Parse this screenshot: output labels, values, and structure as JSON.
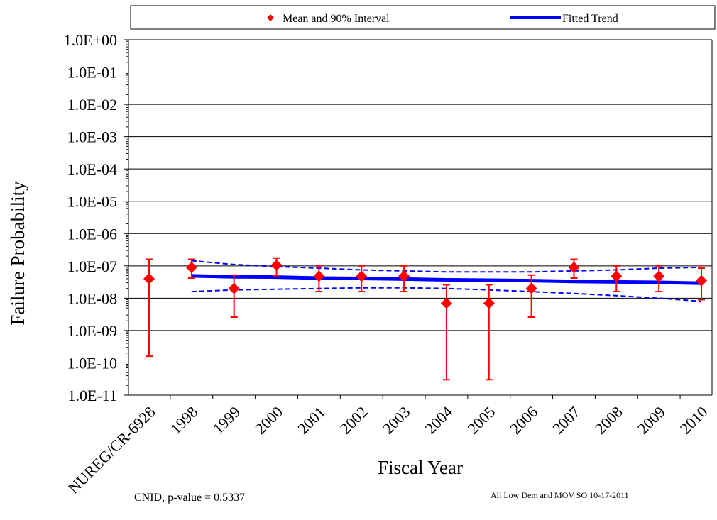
{
  "chart_data": {
    "type": "scatter",
    "title": "",
    "xlabel": "Fiscal Year",
    "ylabel": "Failure Probability",
    "yscale": "log",
    "ylim": [
      1e-11,
      1
    ],
    "y_tick_labels": [
      "1.0E+00",
      "1.0E-01",
      "1.0E-02",
      "1.0E-03",
      "1.0E-04",
      "1.0E-05",
      "1.0E-06",
      "1.0E-07",
      "1.0E-08",
      "1.0E-09",
      "1.0E-10",
      "1.0E-11"
    ],
    "categories": [
      "NUREG/CR-6928",
      "1998",
      "1999",
      "2000",
      "2001",
      "2002",
      "2003",
      "2004",
      "2005",
      "2006",
      "2007",
      "2008",
      "2009",
      "2010"
    ],
    "grid": true,
    "legend_position": "top",
    "legend": {
      "mean_label": "Mean and 90% Interval",
      "trend_label": "Fitted Trend"
    },
    "series": [
      {
        "name": "Mean and 90% Interval",
        "color": "#ff0000",
        "mean": [
          4e-08,
          9e-08,
          2e-08,
          1.05e-07,
          4.8e-08,
          4.8e-08,
          4.8e-08,
          7e-09,
          7e-09,
          2e-08,
          9e-08,
          4.8e-08,
          4.8e-08,
          3.5e-08
        ],
        "lower": [
          1.6e-10,
          4.2e-08,
          2.6e-09,
          5e-08,
          1.6e-08,
          1.6e-08,
          1.6e-08,
          3e-11,
          3e-11,
          2.6e-09,
          4.2e-08,
          1.6e-08,
          1.6e-08,
          9e-09
        ],
        "upper": [
          1.6e-07,
          1.6e-07,
          5.2e-08,
          1.75e-07,
          1e-07,
          1e-07,
          1e-07,
          2.6e-08,
          2.6e-08,
          5.2e-08,
          1.6e-07,
          1e-07,
          1e-07,
          8.5e-08
        ]
      },
      {
        "name": "Fitted Trend",
        "color": "#0000ff",
        "x": [
          "1998",
          "1999",
          "2000",
          "2001",
          "2002",
          "2003",
          "2004",
          "2005",
          "2006",
          "2007",
          "2008",
          "2009",
          "2010"
        ],
        "values": [
          4.9e-08,
          4.6e-08,
          4.5e-08,
          4.2e-08,
          4.1e-08,
          3.9e-08,
          3.7e-08,
          3.6e-08,
          3.5e-08,
          3.3e-08,
          3.2e-08,
          3.1e-08,
          2.9e-08
        ],
        "upper_band": [
          1.45e-07,
          1.1e-07,
          9.5e-08,
          8.5e-08,
          7.5e-08,
          7e-08,
          6.5e-08,
          6.5e-08,
          6.5e-08,
          7e-08,
          7.5e-08,
          8.5e-08,
          9e-08
        ],
        "lower_band": [
          1.6e-08,
          1.8e-08,
          1.9e-08,
          2e-08,
          2.1e-08,
          2.1e-08,
          2e-08,
          1.8e-08,
          1.6e-08,
          1.4e-08,
          1.2e-08,
          1e-08,
          8e-09
        ]
      }
    ]
  },
  "footnote_left": "CNID, p-value = 0.5337",
  "footnote_right": "All Low Dem and MOV SO 10-17-2011"
}
